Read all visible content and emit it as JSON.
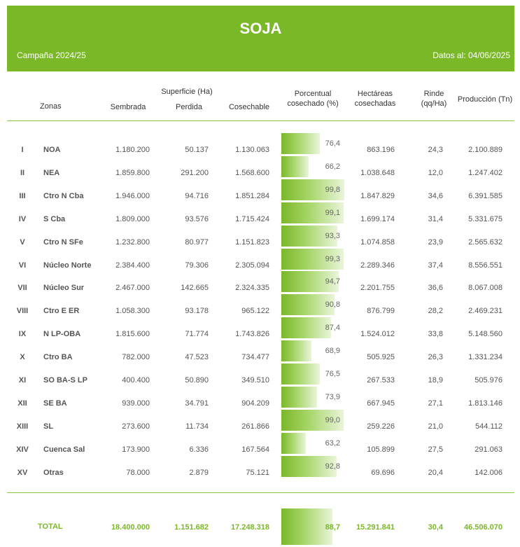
{
  "header": {
    "title": "SOJA",
    "campaign": "Campaña 2024/25",
    "date": "Datos al: 04/06/2025"
  },
  "columns": {
    "zonas": "Zonas",
    "superficie": "Superficie (Ha)",
    "sembrada": "Sembrada",
    "perdida": "Perdida",
    "cosechable": "Cosechable",
    "porcentual_1": "Porcentual",
    "porcentual_2": "cosechado (%)",
    "hectareas_1": "Hectáreas",
    "hectareas_2": "cosechadas",
    "rinde_1": "Rinde",
    "rinde_2": "(qq/Ha)",
    "produccion": "Producción (Tn)"
  },
  "rows": [
    {
      "roman": "I",
      "zone": "NOA",
      "sembrada": "1.180.200",
      "perdida": "50.137",
      "cosechable": "1.130.063",
      "pct": "76,4",
      "pct_value": 76.4,
      "hectareas": "863.196",
      "rinde": "24,3",
      "produccion": "2.100.889"
    },
    {
      "roman": "II",
      "zone": "NEA",
      "sembrada": "1.859.800",
      "perdida": "291.200",
      "cosechable": "1.568.600",
      "pct": "66,2",
      "pct_value": 66.2,
      "hectareas": "1.038.648",
      "rinde": "12,0",
      "produccion": "1.247.402"
    },
    {
      "roman": "III",
      "zone": "Ctro N Cba",
      "sembrada": "1.946.000",
      "perdida": "94.716",
      "cosechable": "1.851.284",
      "pct": "99,8",
      "pct_value": 99.8,
      "hectareas": "1.847.829",
      "rinde": "34,6",
      "produccion": "6.391.585"
    },
    {
      "roman": "IV",
      "zone": "S Cba",
      "sembrada": "1.809.000",
      "perdida": "93.576",
      "cosechable": "1.715.424",
      "pct": "99,1",
      "pct_value": 99.1,
      "hectareas": "1.699.174",
      "rinde": "31,4",
      "produccion": "5.331.675"
    },
    {
      "roman": "V",
      "zone": "Ctro N SFe",
      "sembrada": "1.232.800",
      "perdida": "80.977",
      "cosechable": "1.151.823",
      "pct": "93,3",
      "pct_value": 93.3,
      "hectareas": "1.074.858",
      "rinde": "23,9",
      "produccion": "2.565.632"
    },
    {
      "roman": "VI",
      "zone": "Núcleo Norte",
      "sembrada": "2.384.400",
      "perdida": "79.306",
      "cosechable": "2.305.094",
      "pct": "99,3",
      "pct_value": 99.3,
      "hectareas": "2.289.346",
      "rinde": "37,4",
      "produccion": "8.556.551"
    },
    {
      "roman": "VII",
      "zone": "Núcleo Sur",
      "sembrada": "2.467.000",
      "perdida": "142.665",
      "cosechable": "2.324.335",
      "pct": "94,7",
      "pct_value": 94.7,
      "hectareas": "2.201.755",
      "rinde": "36,6",
      "produccion": "8.067.008"
    },
    {
      "roman": "VIII",
      "zone": "Ctro E ER",
      "sembrada": "1.058.300",
      "perdida": "93.178",
      "cosechable": "965.122",
      "pct": "90,8",
      "pct_value": 90.8,
      "hectareas": "876.799",
      "rinde": "28,2",
      "produccion": "2.469.231"
    },
    {
      "roman": "IX",
      "zone": "N LP-OBA",
      "sembrada": "1.815.600",
      "perdida": "71.774",
      "cosechable": "1.743.826",
      "pct": "87,4",
      "pct_value": 87.4,
      "hectareas": "1.524.012",
      "rinde": "33,8",
      "produccion": "5.148.560"
    },
    {
      "roman": "X",
      "zone": "Ctro BA",
      "sembrada": "782.000",
      "perdida": "47.523",
      "cosechable": "734.477",
      "pct": "68,9",
      "pct_value": 68.9,
      "hectareas": "505.925",
      "rinde": "26,3",
      "produccion": "1.331.234"
    },
    {
      "roman": "XI",
      "zone": "SO BA-S LP",
      "sembrada": "400.400",
      "perdida": "50.890",
      "cosechable": "349.510",
      "pct": "76,5",
      "pct_value": 76.5,
      "hectareas": "267.533",
      "rinde": "18,9",
      "produccion": "505.976"
    },
    {
      "roman": "XII",
      "zone": "SE BA",
      "sembrada": "939.000",
      "perdida": "34.791",
      "cosechable": "904.209",
      "pct": "73,9",
      "pct_value": 73.9,
      "hectareas": "667.945",
      "rinde": "27,1",
      "produccion": "1.813.146"
    },
    {
      "roman": "XIII",
      "zone": "SL",
      "sembrada": "273.600",
      "perdida": "11.734",
      "cosechable": "261.866",
      "pct": "99,0",
      "pct_value": 99.0,
      "hectareas": "259.226",
      "rinde": "21,0",
      "produccion": "544.112"
    },
    {
      "roman": "XIV",
      "zone": "Cuenca Sal",
      "sembrada": "173.900",
      "perdida": "6.336",
      "cosechable": "167.564",
      "pct": "63,2",
      "pct_value": 63.2,
      "hectareas": "105.899",
      "rinde": "27,5",
      "produccion": "291.063"
    },
    {
      "roman": "XV",
      "zone": "Otras",
      "sembrada": "78.000",
      "perdida": "2.879",
      "cosechable": "75.121",
      "pct": "92,8",
      "pct_value": 92.8,
      "hectareas": "69.696",
      "rinde": "20,4",
      "produccion": "142.006"
    }
  ],
  "total": {
    "label": "TOTAL",
    "sembrada": "18.400.000",
    "perdida": "1.151.682",
    "cosechable": "17.248.318",
    "pct": "88,7",
    "pct_value": 88.7,
    "hectareas": "15.291.841",
    "rinde": "30,4",
    "produccion": "46.506.070"
  },
  "colors": {
    "accent": "#7ab828",
    "rule": "#8cc63f"
  }
}
